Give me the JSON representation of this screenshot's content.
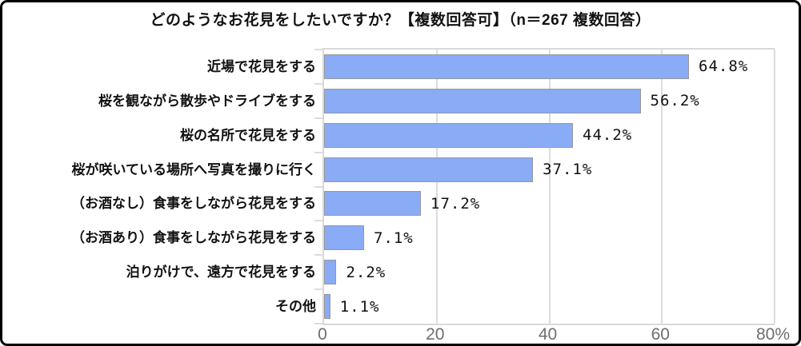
{
  "chart_data": {
    "type": "bar",
    "orientation": "horizontal",
    "title": "どのようなお花見をしたいですか？【複数回答可】（n＝267 複数回答）",
    "categories": [
      "近場で花見をする",
      "桜を観ながら散歩やドライブをする",
      "桜の名所で花見をする",
      "桜が咲いている場所へ写真を撮りに行く",
      "（お酒なし）食事をしながら花見をする",
      "（お酒あり）食事をしながら花見をする",
      "泊りがけで、遠方で花見をする",
      "その他"
    ],
    "values": [
      64.8,
      56.2,
      44.2,
      37.1,
      17.2,
      7.1,
      2.2,
      1.1
    ],
    "value_labels": [
      "64.8%",
      "56.2%",
      "44.2%",
      "37.1%",
      "17.2%",
      "7.1%",
      "2.2%",
      "1.1%"
    ],
    "xlim": [
      0,
      80
    ],
    "x_ticks": [
      {
        "value": 0,
        "label": "0"
      },
      {
        "value": 20,
        "label": "20"
      },
      {
        "value": 40,
        "label": "40"
      },
      {
        "value": 60,
        "label": "60"
      },
      {
        "value": 80,
        "label": "80%"
      }
    ],
    "gridlines": [
      20,
      40,
      60,
      80
    ],
    "grid": true,
    "legend": false,
    "colors": {
      "bar_fill": "#8aabf5",
      "bar_border": "#98989c",
      "gridline": "#dcdcdc",
      "axis": "#d9d9d9",
      "tick_label": "#6e6e6e",
      "text": "#111111",
      "frame_border": "#000000",
      "background": "#ffffff"
    }
  }
}
